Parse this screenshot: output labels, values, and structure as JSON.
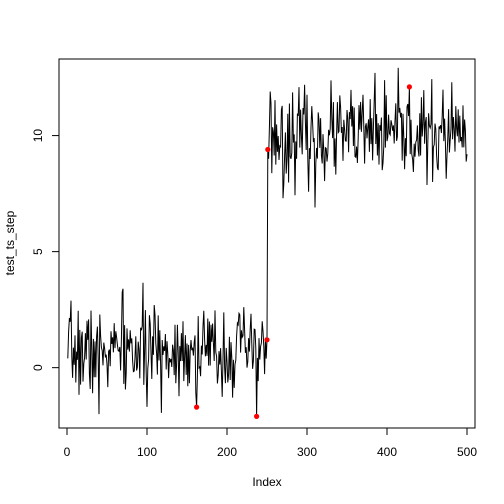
{
  "chart_data": {
    "type": "line",
    "title": "",
    "xlabel": "Index",
    "ylabel": "test_ts_step",
    "xlim": [
      -10,
      510
    ],
    "ylim": [
      -2.6,
      13.3
    ],
    "xticks": [
      0,
      100,
      200,
      300,
      400,
      500
    ],
    "yticks": [
      0,
      5,
      10
    ],
    "grid": false,
    "legend": "none",
    "n": 500,
    "step_at": 250,
    "segments": [
      {
        "name": "",
        "start": 1,
        "end": 250,
        "mean": 0.7,
        "sd": 0.95,
        "seed": 7
      },
      {
        "name": "",
        "start": 251,
        "end": 500,
        "mean": 10.0,
        "sd": 0.95,
        "seed": 23
      }
    ],
    "fixed_points": [
      [
        1,
        0.4
      ],
      [
        40,
        -2.0
      ],
      [
        70,
        3.4
      ],
      [
        145,
        2.0
      ],
      [
        162,
        -1.7
      ],
      [
        237,
        -2.1
      ],
      [
        246,
        0.9
      ],
      [
        250,
        1.2
      ],
      [
        251,
        9.4
      ],
      [
        254,
        11.9
      ],
      [
        270,
        7.3
      ],
      [
        310,
        6.9
      ],
      [
        385,
        12.7
      ],
      [
        428,
        12.1
      ],
      [
        500,
        9.2
      ]
    ],
    "highlighted_points": [
      {
        "x": 162,
        "y": -1.7
      },
      {
        "x": 237,
        "y": -2.1
      },
      {
        "x": 250,
        "y": 1.2
      },
      {
        "x": 251,
        "y": 9.4
      },
      {
        "x": 428,
        "y": 12.1
      }
    ],
    "line_color": "#000000",
    "point_color": "#ff0000"
  }
}
